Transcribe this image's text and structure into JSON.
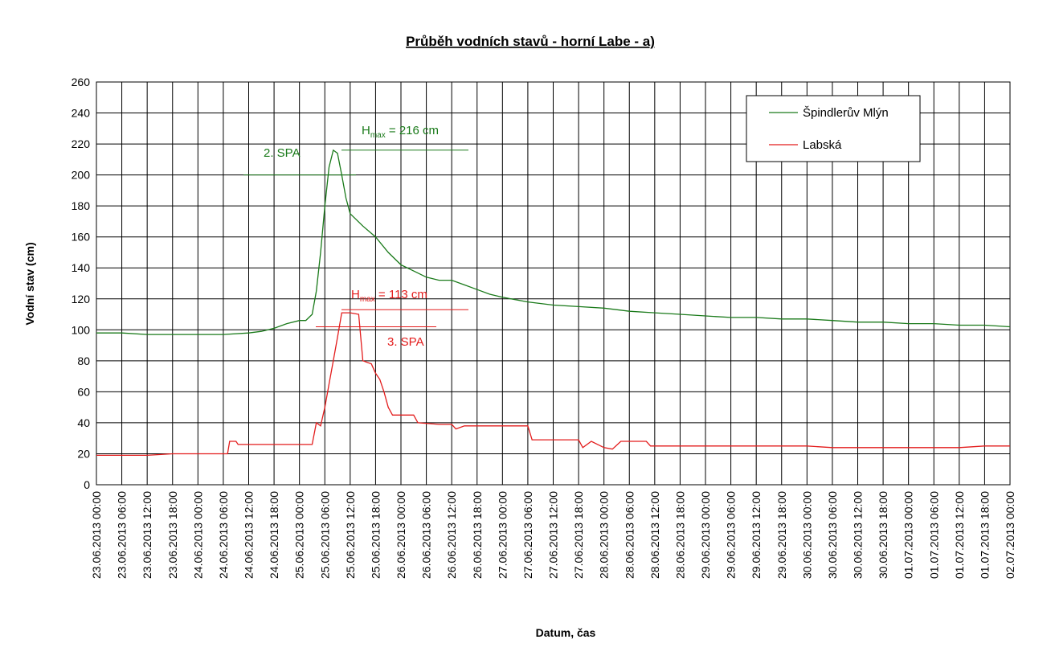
{
  "chart_data": {
    "type": "line",
    "title": "Průběh vodních stavů - horní Labe - a)",
    "xlabel": "Datum, čas",
    "ylabel": "Vodní stav (cm)",
    "ylim": [
      0,
      260
    ],
    "yticks": [
      0,
      20,
      40,
      60,
      80,
      100,
      120,
      140,
      160,
      180,
      200,
      220,
      240,
      260
    ],
    "grid": true,
    "legend_position": "top-right",
    "x_ticks": [
      "23.06.2013 00:00",
      "23.06.2013 06:00",
      "23.06.2013 12:00",
      "23.06.2013 18:00",
      "24.06.2013 00:00",
      "24.06.2013 06:00",
      "24.06.2013 12:00",
      "24.06.2013 18:00",
      "25.06.2013 00:00",
      "25.06.2013 06:00",
      "25.06.2013 12:00",
      "25.06.2013 18:00",
      "26.06.2013 00:00",
      "26.06.2013 06:00",
      "26.06.2013 12:00",
      "26.06.2013 18:00",
      "27.06.2013 00:00",
      "27.06.2013 06:00",
      "27.06.2013 12:00",
      "27.06.2013 18:00",
      "28.06.2013 00:00",
      "28.06.2013 06:00",
      "28.06.2013 12:00",
      "28.06.2013 18:00",
      "29.06.2013 00:00",
      "29.06.2013 06:00",
      "29.06.2013 12:00",
      "29.06.2013 18:00",
      "30.06.2013 00:00",
      "30.06.2013 06:00",
      "30.06.2013 12:00",
      "30.06.2013 18:00",
      "01.07.2013 00:00",
      "01.07.2013 06:00",
      "01.07.2013 12:00",
      "01.07.2013 18:00",
      "02.07.2013 00:00"
    ],
    "series": [
      {
        "name": "Špindlerův Mlýn",
        "color": "#1a7a1a",
        "points": [
          [
            "23.06.2013 00:00",
            98
          ],
          [
            "23.06.2013 06:00",
            98
          ],
          [
            "23.06.2013 12:00",
            97
          ],
          [
            "23.06.2013 18:00",
            97
          ],
          [
            "24.06.2013 00:00",
            97
          ],
          [
            "24.06.2013 06:00",
            97
          ],
          [
            "24.06.2013 12:00",
            98
          ],
          [
            "24.06.2013 15:00",
            99
          ],
          [
            "24.06.2013 18:00",
            101
          ],
          [
            "24.06.2013 21:00",
            104
          ],
          [
            "25.06.2013 00:00",
            106
          ],
          [
            "25.06.2013 01:30",
            106
          ],
          [
            "25.06.2013 03:00",
            110
          ],
          [
            "25.06.2013 04:00",
            125
          ],
          [
            "25.06.2013 05:00",
            150
          ],
          [
            "25.06.2013 06:00",
            180
          ],
          [
            "25.06.2013 07:00",
            205
          ],
          [
            "25.06.2013 08:00",
            216
          ],
          [
            "25.06.2013 09:00",
            214
          ],
          [
            "25.06.2013 10:00",
            200
          ],
          [
            "25.06.2013 11:00",
            185
          ],
          [
            "25.06.2013 12:00",
            175
          ],
          [
            "25.06.2013 15:00",
            167
          ],
          [
            "25.06.2013 18:00",
            160
          ],
          [
            "25.06.2013 21:00",
            150
          ],
          [
            "26.06.2013 00:00",
            142
          ],
          [
            "26.06.2013 03:00",
            138
          ],
          [
            "26.06.2013 06:00",
            134
          ],
          [
            "26.06.2013 09:00",
            132
          ],
          [
            "26.06.2013 12:00",
            132
          ],
          [
            "26.06.2013 15:00",
            129
          ],
          [
            "26.06.2013 18:00",
            126
          ],
          [
            "26.06.2013 21:00",
            123
          ],
          [
            "27.06.2013 00:00",
            121
          ],
          [
            "27.06.2013 06:00",
            118
          ],
          [
            "27.06.2013 12:00",
            116
          ],
          [
            "27.06.2013 18:00",
            115
          ],
          [
            "28.06.2013 00:00",
            114
          ],
          [
            "28.06.2013 06:00",
            112
          ],
          [
            "28.06.2013 12:00",
            111
          ],
          [
            "28.06.2013 18:00",
            110
          ],
          [
            "29.06.2013 00:00",
            109
          ],
          [
            "29.06.2013 06:00",
            108
          ],
          [
            "29.06.2013 12:00",
            108
          ],
          [
            "29.06.2013 18:00",
            107
          ],
          [
            "30.06.2013 00:00",
            107
          ],
          [
            "30.06.2013 06:00",
            106
          ],
          [
            "30.06.2013 12:00",
            105
          ],
          [
            "30.06.2013 18:00",
            105
          ],
          [
            "01.07.2013 00:00",
            104
          ],
          [
            "01.07.2013 06:00",
            104
          ],
          [
            "01.07.2013 12:00",
            103
          ],
          [
            "01.07.2013 18:00",
            103
          ],
          [
            "02.07.2013 00:00",
            102
          ]
        ]
      },
      {
        "name": "Labská",
        "color": "#e31c1c",
        "points": [
          [
            "23.06.2013 00:00",
            19
          ],
          [
            "23.06.2013 06:00",
            19
          ],
          [
            "23.06.2013 12:00",
            19
          ],
          [
            "23.06.2013 18:00",
            20
          ],
          [
            "24.06.2013 00:00",
            20
          ],
          [
            "24.06.2013 06:00",
            20
          ],
          [
            "24.06.2013 07:00",
            20
          ],
          [
            "24.06.2013 07:30",
            28
          ],
          [
            "24.06.2013 09:00",
            28
          ],
          [
            "24.06.2013 09:30",
            26
          ],
          [
            "24.06.2013 12:00",
            26
          ],
          [
            "24.06.2013 18:00",
            26
          ],
          [
            "25.06.2013 00:00",
            26
          ],
          [
            "25.06.2013 03:00",
            26
          ],
          [
            "25.06.2013 04:00",
            40
          ],
          [
            "25.06.2013 05:00",
            38
          ],
          [
            "25.06.2013 06:00",
            50
          ],
          [
            "25.06.2013 07:00",
            65
          ],
          [
            "25.06.2013 08:00",
            80
          ],
          [
            "25.06.2013 09:00",
            95
          ],
          [
            "25.06.2013 10:00",
            111
          ],
          [
            "25.06.2013 12:00",
            111
          ],
          [
            "25.06.2013 14:00",
            110
          ],
          [
            "25.06.2013 15:00",
            80
          ],
          [
            "25.06.2013 17:00",
            78
          ],
          [
            "25.06.2013 18:00",
            72
          ],
          [
            "25.06.2013 19:00",
            68
          ],
          [
            "25.06.2013 20:00",
            60
          ],
          [
            "25.06.2013 21:00",
            50
          ],
          [
            "25.06.2013 22:00",
            45
          ],
          [
            "26.06.2013 03:00",
            45
          ],
          [
            "26.06.2013 04:00",
            40
          ],
          [
            "26.06.2013 09:00",
            39
          ],
          [
            "26.06.2013 12:00",
            39
          ],
          [
            "26.06.2013 13:00",
            36
          ],
          [
            "26.06.2013 15:00",
            38
          ],
          [
            "27.06.2013 06:00",
            38
          ],
          [
            "27.06.2013 07:00",
            29
          ],
          [
            "27.06.2013 18:00",
            29
          ],
          [
            "27.06.2013 19:00",
            24
          ],
          [
            "27.06.2013 21:00",
            28
          ],
          [
            "28.06.2013 00:00",
            24
          ],
          [
            "28.06.2013 02:00",
            23
          ],
          [
            "28.06.2013 04:00",
            28
          ],
          [
            "28.06.2013 10:00",
            28
          ],
          [
            "28.06.2013 11:00",
            25
          ],
          [
            "28.06.2013 18:00",
            25
          ],
          [
            "29.06.2013 00:00",
            25
          ],
          [
            "29.06.2013 12:00",
            25
          ],
          [
            "30.06.2013 00:00",
            25
          ],
          [
            "30.06.2013 06:00",
            24
          ],
          [
            "01.07.2013 00:00",
            24
          ],
          [
            "01.07.2013 12:00",
            24
          ],
          [
            "01.07.2013 18:00",
            25
          ],
          [
            "02.07.2013 00:00",
            25
          ]
        ]
      }
    ],
    "annotations": [
      {
        "text_main": "H",
        "text_sub": "max",
        "text_rest": " = 216 cm",
        "color": "#1a7a1a",
        "value": 216
      },
      {
        "text": "2. SPA",
        "color": "#1a7a1a",
        "value": 200
      },
      {
        "text_main": "H",
        "text_sub": "max",
        "text_rest": " = 113 cm",
        "color": "#e31c1c",
        "value": 113
      },
      {
        "text": "3. SPA",
        "color": "#e31c1c",
        "value": 102
      }
    ]
  }
}
